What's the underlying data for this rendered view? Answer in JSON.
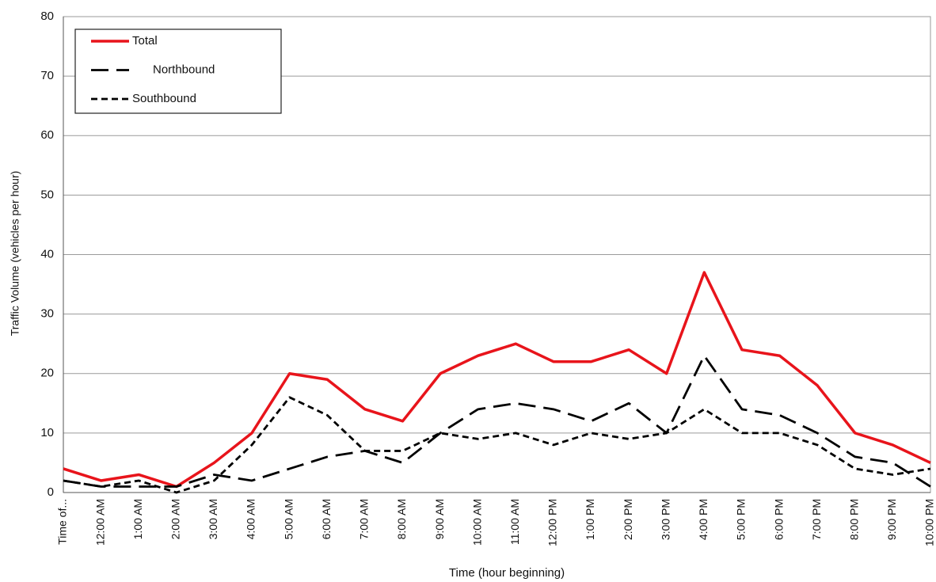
{
  "chart_data": {
    "type": "line",
    "x_label": "Time (hour beginning)",
    "y_label": "Traffic Volume (vehicles per hour)",
    "categories": [
      "Time of...",
      "12:00 AM",
      "1:00 AM",
      "2:00 AM",
      "3:00 AM",
      "4:00 AM",
      "5:00 AM",
      "6:00 AM",
      "7:00 AM",
      "8:00 AM",
      "9:00 AM",
      "10:00 AM",
      "11:00 AM",
      "12:00 PM",
      "1:00 PM",
      "2:00 PM",
      "3:00 PM",
      "4:00 PM",
      "5:00 PM",
      "6:00 PM",
      "7:00 PM",
      "8:00 PM",
      "9:00 PM",
      "10:00 PM"
    ],
    "series": [
      {
        "name": "Total",
        "color": "#e8141b",
        "dash": "solid",
        "values": [
          4,
          2,
          3,
          1,
          5,
          10,
          20,
          19,
          14,
          12,
          20,
          23,
          25,
          22,
          22,
          24,
          20,
          37,
          24,
          23,
          18,
          10,
          8,
          5
        ]
      },
      {
        "name": "Northbound",
        "color": "#000000",
        "dash": "long",
        "values": [
          2,
          1,
          1,
          1,
          3,
          2,
          4,
          6,
          7,
          5,
          10,
          14,
          15,
          14,
          12,
          15,
          10,
          23,
          14,
          13,
          10,
          6,
          5,
          1
        ]
      },
      {
        "name": "Southbound",
        "color": "#000000",
        "dash": "short",
        "values": [
          2,
          1,
          2,
          0,
          2,
          8,
          16,
          13,
          7,
          7,
          10,
          9,
          10,
          8,
          10,
          9,
          10,
          14,
          10,
          10,
          8,
          4,
          3,
          4
        ]
      }
    ],
    "ylim": [
      0,
      80
    ],
    "yticks": [
      0,
      10,
      20,
      30,
      40,
      50,
      60,
      70,
      80
    ],
    "grid": true,
    "legend": "top-left"
  }
}
